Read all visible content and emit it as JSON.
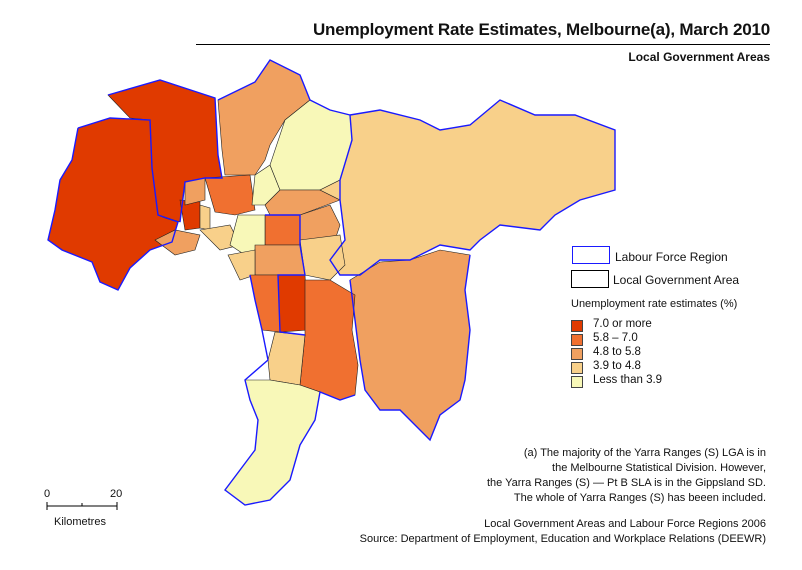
{
  "title": "Unemployment Rate Estimates,  Melbourne(a), March 2010",
  "subtitle": "Local Government Areas",
  "legend": {
    "boundaries": [
      {
        "label": "Labour Force Region",
        "color": "#1a1aff"
      },
      {
        "label": "Local Government Area",
        "color": "#000000"
      }
    ],
    "heading": "Unemployment rate estimates (%)",
    "classes": [
      {
        "label": "7.0 or more",
        "color": "#e03a00"
      },
      {
        "label": "5.8 –  7.0",
        "color": "#f07030"
      },
      {
        "label": "4.8 to 5.8",
        "color": "#f0a060"
      },
      {
        "label": "3.9 to 4.8",
        "color": "#f8d08a"
      },
      {
        "label": "Less than 3.9",
        "color": "#f8f8b8"
      }
    ]
  },
  "scale_bar": {
    "start": "0",
    "end": "20",
    "unit": "Kilometres"
  },
  "note": [
    "(a) The majority of the Yarra Ranges (S) LGA is in",
    "the Melbourne Statistical Division. However,",
    "the Yarra Ranges (S) — Pt B SLA is in the Gippsland SD.",
    "The whole of Yarra Ranges (S) has beeen included."
  ],
  "source": [
    "Local Government Areas and Labour Force Regions 2006",
    "Source: Department of Employment, Education and Workplace Relations (DEEWR)"
  ]
}
